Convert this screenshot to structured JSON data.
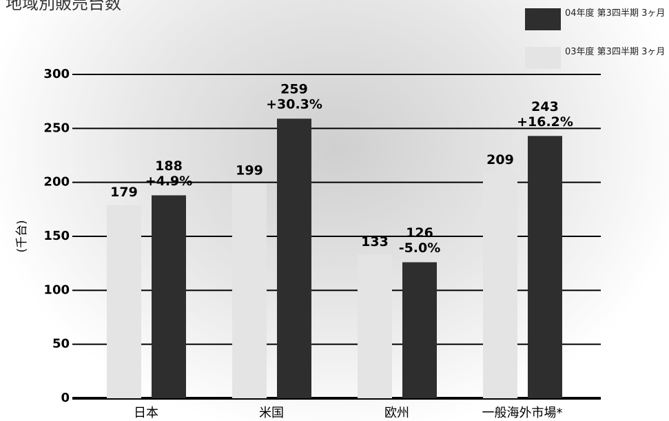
{
  "chart_data": {
    "type": "bar",
    "title": "地域別販売台数",
    "y_label": "(千台)",
    "categories": [
      "日本",
      "米国",
      "欧州",
      "一般海外市場*"
    ],
    "series": [
      {
        "name": "04年度 第3四半期 3ヶ月",
        "color": "#2e2e2e",
        "values": [
          188,
          259,
          126,
          243
        ],
        "change_labels": [
          "+4.9%",
          "+30.3%",
          "-5.0%",
          "+16.2%"
        ]
      },
      {
        "name": "03年度 第3四半期 3ヶ月",
        "color": "#e4e4e4",
        "values": [
          179,
          199,
          133,
          209
        ]
      }
    ],
    "ylim": [
      0,
      300
    ],
    "yticks": [
      0,
      50,
      100,
      150,
      200,
      250,
      300
    ],
    "grid": true
  }
}
